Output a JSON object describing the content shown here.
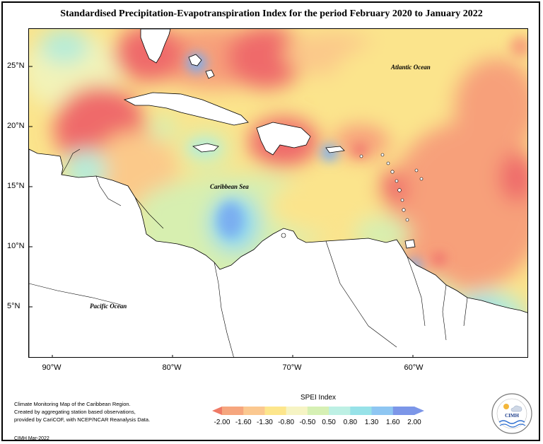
{
  "title": "Standardised Precipitation-Evapotranspiration Index for the period February 2020 to January 2022",
  "map": {
    "labels": {
      "atlantic": "Atlantic Ocean",
      "caribbean": "Caribbean Sea",
      "pacific": "Pacific Ocean"
    },
    "lat_ticks": [
      "25°N",
      "20°N",
      "15°N",
      "10°N",
      "5°N"
    ],
    "lon_ticks": [
      "90°W",
      "80°W",
      "70°W",
      "60°W"
    ],
    "colors": {
      "land": "#ffffff",
      "coast": "#000000",
      "very_dry": "#ef6a6a",
      "dry": "#f7a07a",
      "moderately_dry": "#fbc98a",
      "slightly_dry": "#fbe48c",
      "near_normal": "#f2f3b8",
      "slightly_wet": "#d7efb0",
      "wet": "#b7ecd8",
      "very_wet": "#8fd9ef",
      "extremely_wet": "#7aaef0"
    }
  },
  "legend": {
    "title": "SPEI Index",
    "values": [
      "-2.00",
      "-1.60",
      "-1.30",
      "-0.80",
      "-0.50",
      "0.50",
      "0.80",
      "1.30",
      "1.60",
      "2.00"
    ],
    "colors": [
      "#ef7a66",
      "#f6a67e",
      "#fbc890",
      "#fde68c",
      "#f6f4c4",
      "#d6f0b4",
      "#bdf0e4",
      "#97e2e8",
      "#8ec6f2",
      "#7c96e8"
    ]
  },
  "credits": {
    "line1": "Climate Monitoring Map of the Caribbean Region.",
    "line2": "Created by aggregating station based observations,",
    "line3": "provided by CariCOF, with NCEP/NCAR Reanalysis Data.",
    "footer": "CIMH Mar-2022"
  },
  "logo": {
    "text": "CIMH"
  }
}
